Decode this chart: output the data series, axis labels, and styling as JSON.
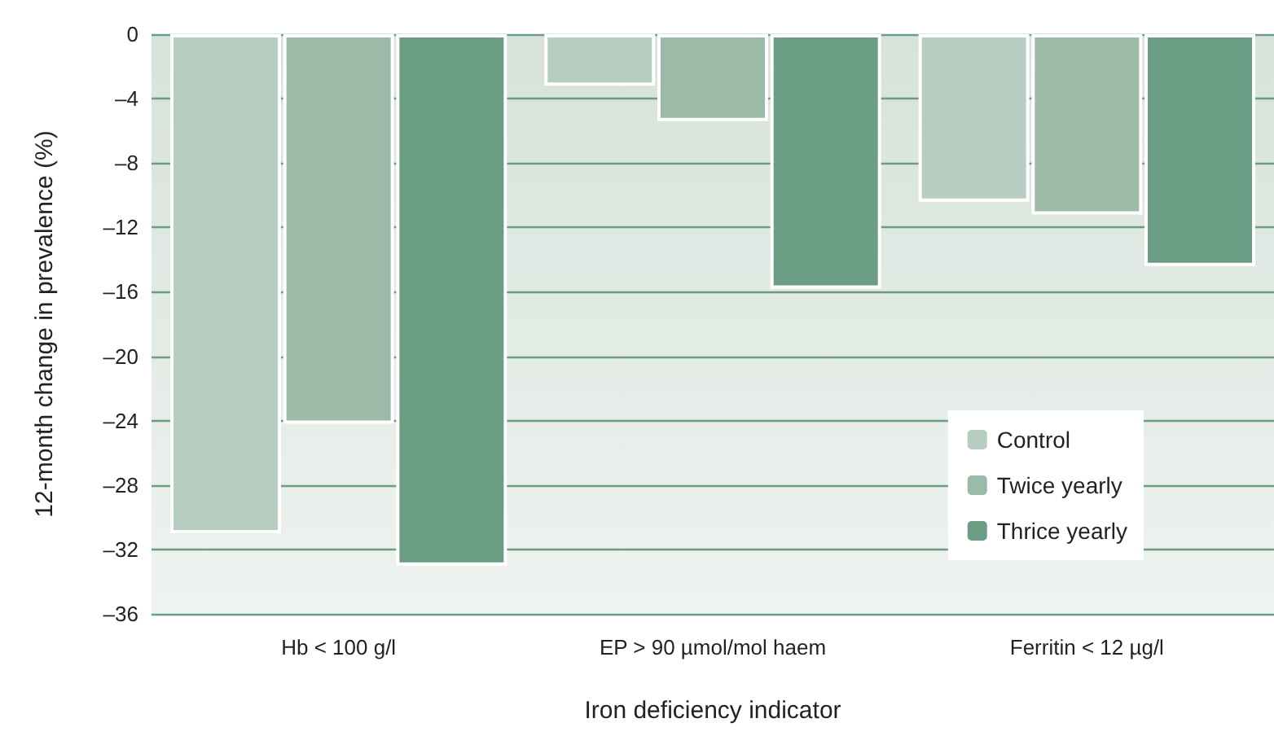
{
  "chart_data": {
    "type": "bar",
    "xlabel": "Iron deficiency indicator",
    "ylabel": "12-month change in prevalence (%)",
    "categories": [
      "Hb < 100 g/l",
      "EP > 90 µmol/mol haem",
      "Ferritin < 12 µg/l"
    ],
    "series": [
      {
        "name": "Control",
        "color": "#b8cdc1",
        "values": [
          -31,
          -3.2,
          -10.4
        ]
      },
      {
        "name": "Twice yearly",
        "color": "#9bbaa8",
        "values": [
          -24.2,
          -5.4,
          -11.2
        ]
      },
      {
        "name": "Thrice yearly",
        "color": "#6b9c84",
        "values": [
          -33,
          -15.8,
          -14.4
        ]
      }
    ],
    "ylim": [
      -36,
      0
    ],
    "yticks": [
      {
        "value": -36,
        "label": "–36"
      },
      {
        "value": -32,
        "label": "–32"
      },
      {
        "value": -28,
        "label": "–28"
      },
      {
        "value": -24,
        "label": "–24"
      },
      {
        "value": -20,
        "label": "–20"
      },
      {
        "value": -16,
        "label": "–16"
      },
      {
        "value": -12,
        "label": "–12"
      },
      {
        "value": -8,
        "label": "–8"
      },
      {
        "value": -4,
        "label": "–4"
      },
      0
    ],
    "grid": "y",
    "legend": "bottom right"
  }
}
